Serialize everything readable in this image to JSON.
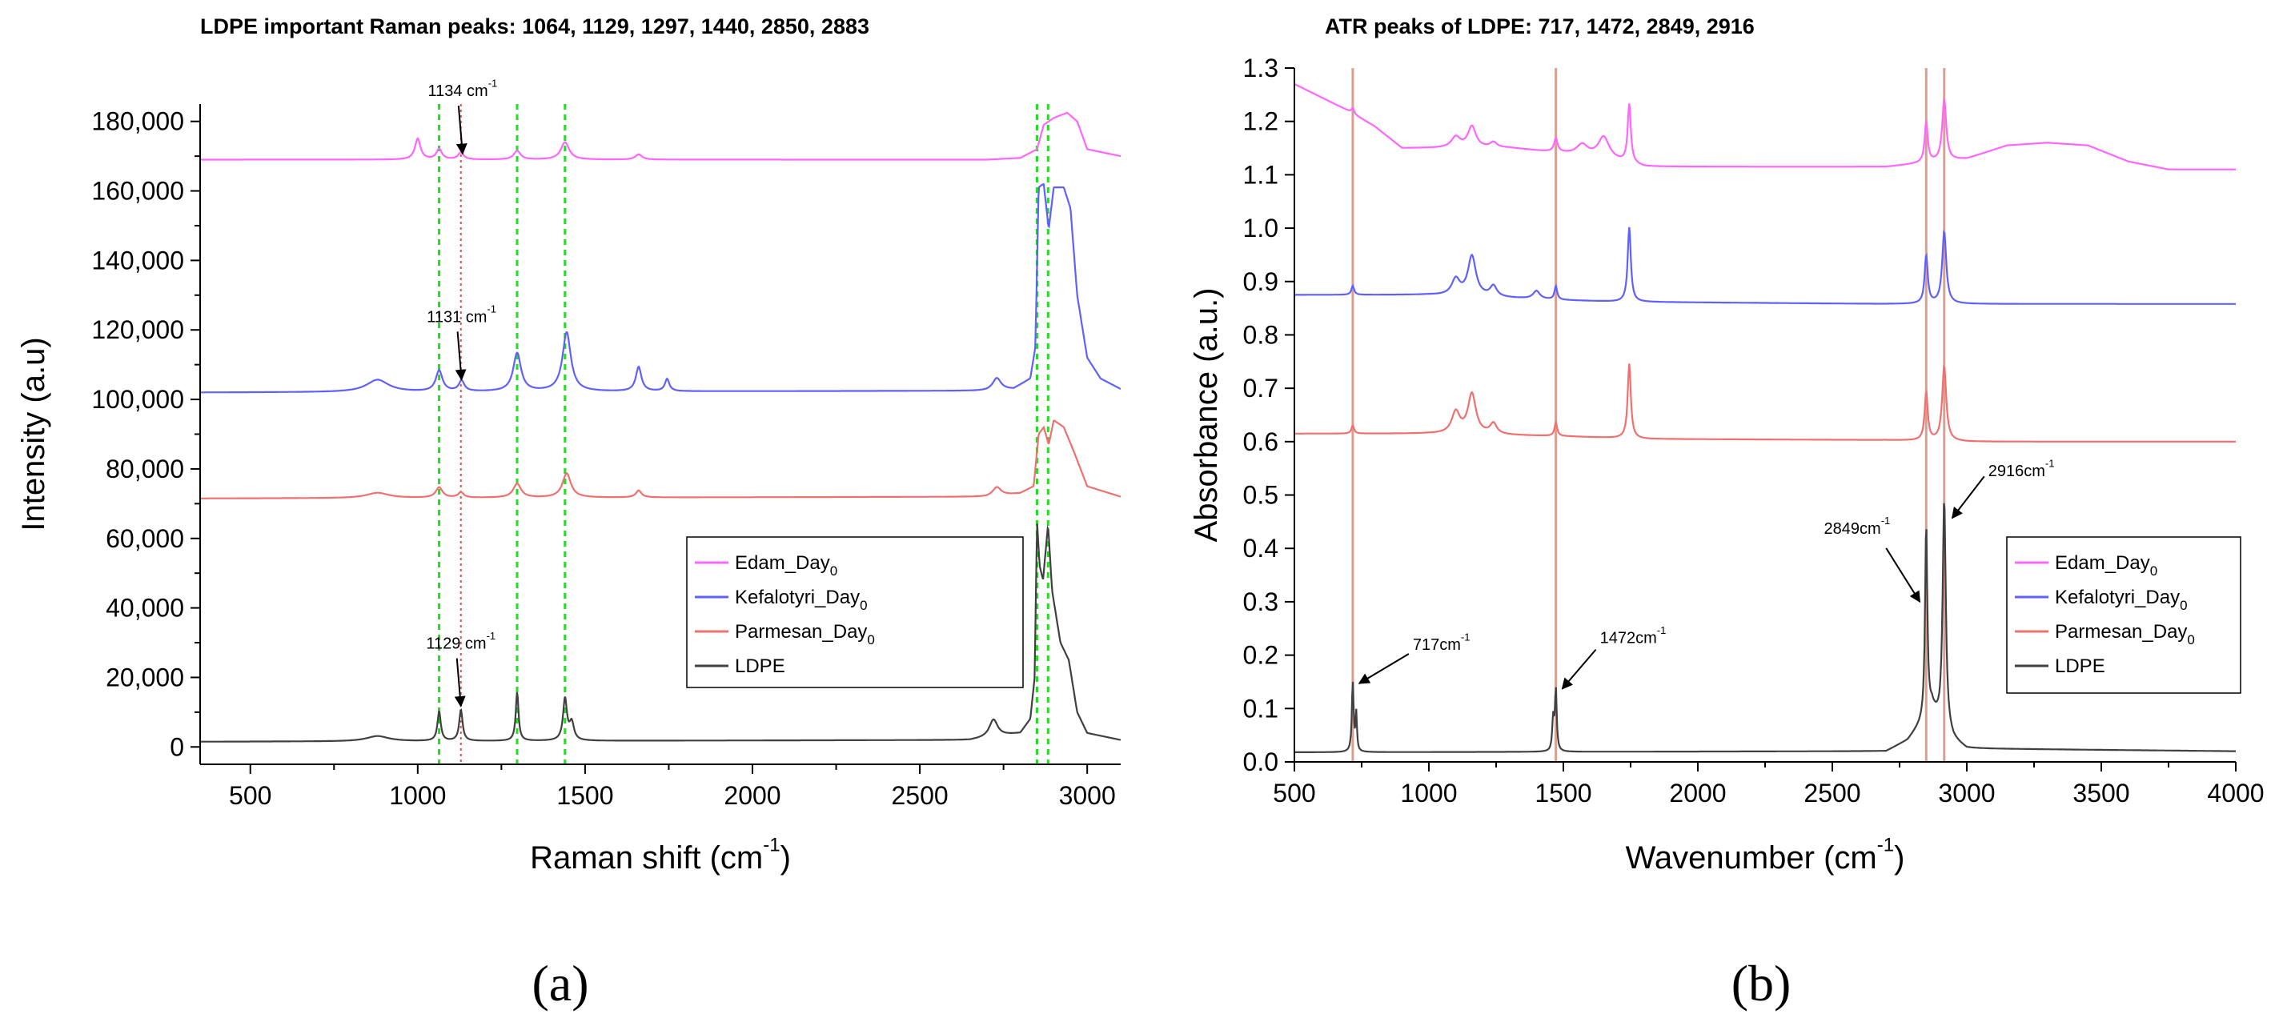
{
  "chart_data": [
    {
      "type": "line",
      "panel_label": "(a)",
      "title": "LDPE important Raman peaks: 1064, 1129, 1297, 1440, 2850, 2883",
      "xlabel": "Raman shift (cm",
      "xlabel_sup": "-1",
      "xlabel_end": ")",
      "ylabel": "Intensity (a.u)",
      "xlim": [
        350,
        3100
      ],
      "ylim": [
        -5000,
        185000
      ],
      "xticks": [
        500,
        1000,
        1500,
        2000,
        2500,
        3000
      ],
      "xtick_labels": [
        "500",
        "1000",
        "1500",
        "2000",
        "2500",
        "3000"
      ],
      "yticks": [
        0,
        20000,
        40000,
        60000,
        80000,
        100000,
        120000,
        140000,
        160000,
        180000
      ],
      "ytick_labels": [
        "0",
        "20,000",
        "40,000",
        "60,000",
        "80,000",
        "100,000",
        "120,000",
        "140,000",
        "160,000",
        "180,000"
      ],
      "green_reference_lines": [
        1064,
        1297,
        1440,
        2850,
        2883
      ],
      "red_reference_line": 1129,
      "legend_position": "right-middle",
      "series": [
        {
          "name": "Edam_Day",
          "sub": "0",
          "color": "#ff66ff",
          "baseline": 169000,
          "end_level": 170000,
          "points": [
            [
              350,
              169000
            ],
            [
              2700,
              169000
            ],
            [
              2800,
              169500
            ],
            [
              2850,
              172000
            ],
            [
              2870,
              179000
            ],
            [
              2900,
              181000
            ],
            [
              2940,
              182500
            ],
            [
              2970,
              180000
            ],
            [
              3000,
              172000
            ],
            [
              3100,
              170000
            ]
          ],
          "peaks": [
            [
              1000,
              6000,
              10
            ],
            [
              1064,
              3000,
              10
            ],
            [
              1129,
              2000,
              10
            ],
            [
              1297,
              2500,
              12
            ],
            [
              1440,
              5000,
              15
            ],
            [
              1660,
              1500,
              12
            ]
          ]
        },
        {
          "name": "Kefalotyri_Day",
          "sub": "0",
          "color": "#6060ff",
          "baseline": 102000,
          "end_level": 103000,
          "points": [
            [
              350,
              102000
            ],
            [
              2700,
              102500
            ],
            [
              2780,
              103000
            ],
            [
              2830,
              106000
            ],
            [
              2845,
              115000
            ],
            [
              2855,
              161000
            ],
            [
              2870,
              162000
            ],
            [
              2885,
              149000
            ],
            [
              2900,
              161000
            ],
            [
              2930,
              161000
            ],
            [
              2950,
              155000
            ],
            [
              2970,
              130000
            ],
            [
              3000,
              112000
            ],
            [
              3040,
              106000
            ],
            [
              3100,
              103000
            ]
          ],
          "peaks": [
            [
              880,
              3500,
              40
            ],
            [
              1064,
              6000,
              12
            ],
            [
              1131,
              3000,
              10
            ],
            [
              1297,
              11000,
              14
            ],
            [
              1445,
              17000,
              15
            ],
            [
              1660,
              7000,
              10
            ],
            [
              1745,
              3500,
              8
            ],
            [
              2730,
              3500,
              15
            ]
          ]
        },
        {
          "name": "Parmesan_Day",
          "sub": "0",
          "color": "#f07070",
          "baseline": 71500,
          "end_level": 72000,
          "points": [
            [
              350,
              71500
            ],
            [
              2700,
              72000
            ],
            [
              2800,
              73000
            ],
            [
              2840,
              75000
            ],
            [
              2855,
              90000
            ],
            [
              2870,
              92000
            ],
            [
              2885,
              87000
            ],
            [
              2900,
              94000
            ],
            [
              2930,
              92000
            ],
            [
              2960,
              85000
            ],
            [
              3000,
              75000
            ],
            [
              3100,
              72000
            ]
          ],
          "peaks": [
            [
              880,
              1500,
              40
            ],
            [
              1064,
              3000,
              12
            ],
            [
              1129,
              1500,
              10
            ],
            [
              1297,
              4000,
              14
            ],
            [
              1445,
              7000,
              15
            ],
            [
              1660,
              2000,
              10
            ],
            [
              2730,
              2500,
              15
            ]
          ]
        },
        {
          "name": "LDPE",
          "sub": "",
          "color": "#404040",
          "baseline": 1500,
          "end_level": 2000,
          "points": [
            [
              350,
              1500
            ],
            [
              2650,
              2000
            ],
            [
              2800,
              4000
            ],
            [
              2830,
              8000
            ],
            [
              2843,
              20000
            ],
            [
              2850,
              65000
            ],
            [
              2858,
              52000
            ],
            [
              2868,
              48000
            ],
            [
              2883,
              64000
            ],
            [
              2895,
              45000
            ],
            [
              2920,
              30000
            ],
            [
              2945,
              25000
            ],
            [
              2970,
              10000
            ],
            [
              3000,
              4000
            ],
            [
              3100,
              2000
            ]
          ],
          "peaks": [
            [
              880,
              1500,
              40
            ],
            [
              1064,
              8500,
              6
            ],
            [
              1129,
              9000,
              6
            ],
            [
              1297,
              14000,
              5
            ],
            [
              1440,
              12000,
              7
            ],
            [
              1460,
              5000,
              8
            ],
            [
              2720,
              5000,
              15
            ]
          ]
        }
      ],
      "annotations": [
        {
          "text": "1134 cm",
          "sup": "-1",
          "x": 1134,
          "y": 170000
        },
        {
          "text": "1131 cm",
          "sup": "-1",
          "x": 1131,
          "y": 105000
        },
        {
          "text": "1129 cm",
          "sup": "-1",
          "x": 1129,
          "y": 11000
        }
      ]
    },
    {
      "type": "line",
      "panel_label": "(b)",
      "title": "ATR peaks of LDPE: 717, 1472, 2849, 2916",
      "xlabel": "Wavenumber (cm",
      "xlabel_sup": "-1",
      "xlabel_end": ")",
      "ylabel": "Absorbance (a.u.)",
      "xlim": [
        500,
        4000
      ],
      "ylim": [
        0,
        1.3
      ],
      "xticks": [
        500,
        1000,
        1500,
        2000,
        2500,
        3000,
        3500,
        4000
      ],
      "xtick_labels": [
        "500",
        "1000",
        "1500",
        "2000",
        "2500",
        "3000",
        "3500",
        "4000"
      ],
      "yticks": [
        0,
        0.1,
        0.2,
        0.3,
        0.4,
        0.5,
        0.6,
        0.7,
        0.8,
        0.9,
        1.0,
        1.1,
        1.2,
        1.3
      ],
      "ytick_labels": [
        "0.0",
        "0.1",
        "0.2",
        "0.3",
        "0.4",
        "0.5",
        "0.6",
        "0.7",
        "0.8",
        "0.9",
        "1.0",
        "1.1",
        "1.2",
        "1.3"
      ],
      "reference_lines": [
        717,
        1472,
        2849,
        2916
      ],
      "legend_position": "right-middle",
      "series": [
        {
          "name": "Edam_Day",
          "sub": "0",
          "color": "#ff66ff",
          "points": [
            [
              500,
              1.27
            ],
            [
              700,
              1.22
            ],
            [
              800,
              1.19
            ],
            [
              900,
              1.15
            ],
            [
              1000,
              1.15
            ],
            [
              1300,
              1.15
            ],
            [
              1500,
              1.14
            ],
            [
              1650,
              1.13
            ],
            [
              1800,
              1.115
            ],
            [
              2700,
              1.115
            ],
            [
              2800,
              1.12
            ],
            [
              3000,
              1.13
            ],
            [
              3150,
              1.155
            ],
            [
              3300,
              1.16
            ],
            [
              3450,
              1.155
            ],
            [
              3600,
              1.125
            ],
            [
              3750,
              1.11
            ],
            [
              4000,
              1.11
            ]
          ],
          "peaks": [
            [
              717,
              0.01,
              6
            ],
            [
              1100,
              0.02,
              20
            ],
            [
              1160,
              0.04,
              18
            ],
            [
              1240,
              0.01,
              15
            ],
            [
              1472,
              0.025,
              8
            ],
            [
              1570,
              0.02,
              25
            ],
            [
              1650,
              0.04,
              25
            ],
            [
              1745,
              0.11,
              7
            ],
            [
              2849,
              0.075,
              7
            ],
            [
              2916,
              0.115,
              9
            ]
          ]
        },
        {
          "name": "Kefalotyri_Day",
          "sub": "0",
          "color": "#6060ff",
          "points": [
            [
              500,
              0.875
            ],
            [
              1000,
              0.875
            ],
            [
              1500,
              0.865
            ],
            [
              1700,
              0.862
            ],
            [
              2700,
              0.858
            ],
            [
              3000,
              0.858
            ],
            [
              4000,
              0.858
            ]
          ],
          "peaks": [
            [
              717,
              0.017,
              6
            ],
            [
              1100,
              0.03,
              18
            ],
            [
              1160,
              0.075,
              18
            ],
            [
              1240,
              0.02,
              15
            ],
            [
              1400,
              0.015,
              15
            ],
            [
              1472,
              0.025,
              6
            ],
            [
              1745,
              0.14,
              7
            ],
            [
              2849,
              0.09,
              7
            ],
            [
              2916,
              0.135,
              9
            ]
          ]
        },
        {
          "name": "Parmesan_Day",
          "sub": "0",
          "color": "#f07070",
          "points": [
            [
              500,
              0.615
            ],
            [
              1000,
              0.615
            ],
            [
              1500,
              0.61
            ],
            [
              1800,
              0.605
            ],
            [
              2700,
              0.603
            ],
            [
              3000,
              0.6
            ],
            [
              4000,
              0.6
            ]
          ],
          "peaks": [
            [
              717,
              0.015,
              6
            ],
            [
              1100,
              0.04,
              18
            ],
            [
              1160,
              0.075,
              18
            ],
            [
              1240,
              0.02,
              15
            ],
            [
              1472,
              0.025,
              6
            ],
            [
              1745,
              0.14,
              7
            ],
            [
              2849,
              0.09,
              7
            ],
            [
              2916,
              0.14,
              9
            ]
          ]
        },
        {
          "name": "LDPE",
          "sub": "",
          "color": "#404040",
          "points": [
            [
              500,
              0.018
            ],
            [
              2700,
              0.02
            ],
            [
              2780,
              0.04
            ],
            [
              2830,
              0.07
            ],
            [
              2870,
              0.1
            ],
            [
              2900,
              0.07
            ],
            [
              2950,
              0.04
            ],
            [
              3000,
              0.025
            ],
            [
              4000,
              0.02
            ]
          ],
          "peaks": [
            [
              717,
              0.13,
              4
            ],
            [
              730,
              0.07,
              3
            ],
            [
              1462,
              0.06,
              4
            ],
            [
              1472,
              0.115,
              4
            ],
            [
              2849,
              0.36,
              5
            ],
            [
              2916,
              0.43,
              7
            ]
          ]
        }
      ],
      "annotations": [
        {
          "text": "717cm",
          "sup": "-1",
          "x": 717,
          "y": 0.15
        },
        {
          "text": "1472cm",
          "sup": "-1",
          "x": 1472,
          "y": 0.14
        },
        {
          "text": "2849cm",
          "sup": "-1",
          "x": 2849,
          "y": 0.3
        },
        {
          "text": "2916cm",
          "sup": "-1",
          "x": 2916,
          "y": 0.49
        }
      ]
    }
  ]
}
